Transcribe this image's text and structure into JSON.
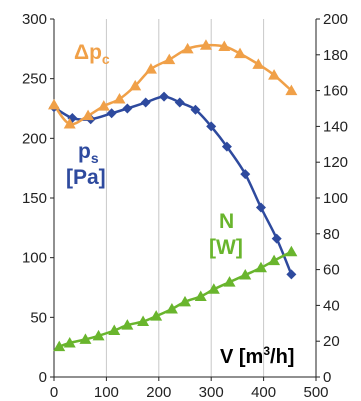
{
  "chart_data": {
    "type": "line",
    "x_label": {
      "text": "V [m",
      "sup": "3",
      "tail": "/h]"
    },
    "xlim": [
      0,
      500
    ],
    "x_ticks": [
      0,
      100,
      200,
      300,
      400,
      500
    ],
    "y_left": {
      "lim": [
        0,
        300
      ],
      "ticks": [
        0,
        50,
        100,
        150,
        200,
        250,
        300
      ]
    },
    "y_right": {
      "lim": [
        0,
        200
      ],
      "ticks": [
        0,
        20,
        40,
        60,
        80,
        100,
        120,
        140,
        160,
        180,
        200
      ]
    },
    "grid": "vertical",
    "labels": {
      "ps": {
        "main": "p",
        "sub": "s",
        "unit": "[Pa]"
      },
      "dpc": {
        "main": "Δp",
        "sub": "c"
      },
      "n": {
        "main": "N",
        "unit": "[W]"
      }
    },
    "series": [
      {
        "key": "ps",
        "axis": "left",
        "color": "#2e4a9e",
        "marker": "diamond",
        "x": [
          0,
          35,
          70,
          110,
          140,
          175,
          210,
          240,
          270,
          300,
          330,
          365,
          395,
          425,
          453
        ],
        "y": [
          226,
          217,
          216,
          221,
          225,
          230,
          235,
          230,
          224,
          210,
          193,
          170,
          142,
          116,
          86
        ]
      },
      {
        "key": "dpc",
        "axis": "left",
        "color": "#f0a048",
        "marker": "triangle",
        "x": [
          0,
          30,
          65,
          95,
          125,
          155,
          185,
          220,
          255,
          290,
          325,
          355,
          390,
          420,
          453
        ],
        "y": [
          228,
          212,
          219,
          227,
          233,
          244,
          258,
          266,
          275,
          278,
          277,
          271,
          262,
          253,
          240
        ]
      },
      {
        "key": "n",
        "axis": "right",
        "color": "#69b52d",
        "marker": "triangle",
        "x": [
          10,
          30,
          60,
          85,
          115,
          140,
          170,
          195,
          225,
          250,
          280,
          305,
          335,
          365,
          395,
          420,
          453
        ],
        "y": [
          17,
          19,
          21,
          23,
          26,
          29,
          31,
          34,
          38,
          42,
          45,
          49,
          53,
          57,
          61,
          65,
          70
        ]
      }
    ]
  }
}
